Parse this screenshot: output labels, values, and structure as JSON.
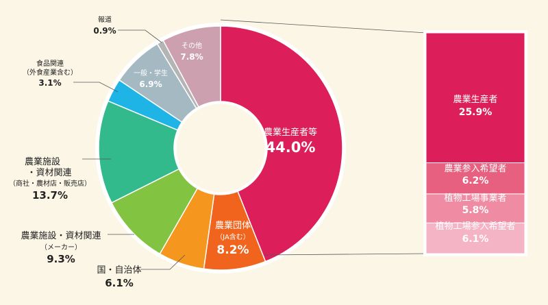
{
  "chart_data": {
    "type": "pie",
    "donut": true,
    "categories": [
      "農業生産者等",
      "農業団体（JA含む）",
      "国・自治体",
      "農業施設・資材関連（メーカー）",
      "農業施設・資材関連（商社・農材店・販売店）",
      "食品関連（外食産業含む）",
      "一般・学生",
      "報道",
      "その他"
    ],
    "values": [
      44.0,
      8.2,
      6.1,
      9.3,
      13.7,
      3.1,
      6.9,
      0.9,
      7.8
    ],
    "colors": [
      "#dc1e5a",
      "#f0641e",
      "#f5961e",
      "#82c341",
      "#32b98c",
      "#1eb4e6",
      "#a5b9c3",
      "#b4b4b4",
      "#cda0af"
    ],
    "breakdown": {
      "of": "農業生産者等",
      "categories": [
        "農業生産者",
        "農業参入希望者",
        "植物工場事業者",
        "植物工場参入希望者"
      ],
      "values": [
        25.9,
        6.2,
        5.8,
        6.1
      ],
      "colors": [
        "#dc1e5a",
        "#e8607f",
        "#ef8ca3",
        "#f4b4c5"
      ]
    }
  },
  "labels": {
    "producers": {
      "name": "農業生産者等",
      "value": "44.0%"
    },
    "ja": {
      "name": "農業団体",
      "sub": "（JA含む）",
      "value": "8.2%"
    },
    "gov": {
      "name": "国・自治体",
      "value": "6.1%"
    },
    "maker": {
      "name": "農業施設・資材関連",
      "sub": "（メーカー）",
      "value": "9.3%"
    },
    "trader": {
      "line1": "農業施設",
      "line2": "・資材関連",
      "sub": "（商社・農材店・販売店）",
      "value": "13.7%"
    },
    "food": {
      "name": "食品関連",
      "sub": "（外食産業含む）",
      "value": "3.1%"
    },
    "general": {
      "name": "一般・学生",
      "value": "6.9%"
    },
    "press": {
      "name": "報道",
      "value": "0.9%"
    },
    "other": {
      "name": "その他",
      "value": "7.8%"
    },
    "bar": [
      {
        "name": "農業生産者",
        "value": "25.9%"
      },
      {
        "name": "農業参入希望者",
        "value": "6.2%"
      },
      {
        "name": "植物工場事業者",
        "value": "5.8%"
      },
      {
        "name": "植物工場参入希望者",
        "value": "6.1%"
      }
    ]
  }
}
